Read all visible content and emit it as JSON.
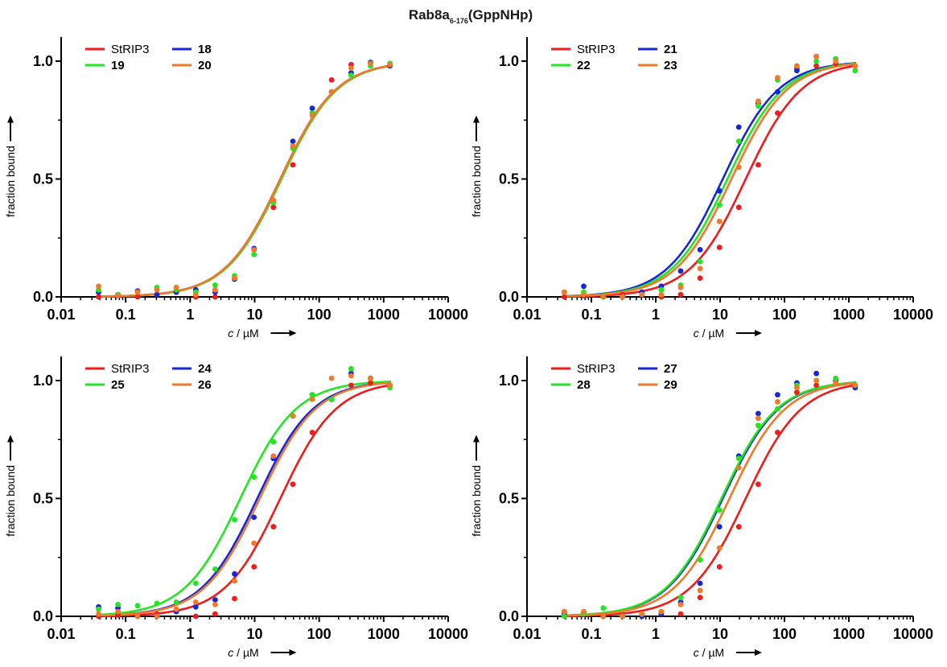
{
  "figure": {
    "title_main": "Rab8a",
    "title_sub": "6-176",
    "title_tail": "(GppNHp)"
  },
  "colors": {
    "StRIP3": "#ee1c1c",
    "blue": "#1528d8",
    "green": "#22e622",
    "orange": "#f07a2a"
  },
  "chart_data": [
    {
      "type": "scatter",
      "xscale": "log",
      "xlim": [
        0.01,
        10000
      ],
      "ylim": [
        0,
        1.1
      ],
      "xticks": [
        "0.01",
        "0.1",
        "1",
        "10",
        "100",
        "1000",
        "10000"
      ],
      "yticks": [
        "0.0",
        "0.5",
        "1.0"
      ],
      "xlabel_italic": "c",
      "xlabel": " / µM",
      "ylabel": "fraction bound",
      "legend_position": "top-left",
      "series": [
        {
          "name": "StRIP3",
          "color": "#ee1c1c",
          "fit_ec50": 25,
          "x": [
            0.038,
            0.076,
            0.153,
            0.305,
            0.61,
            1.22,
            2.44,
            4.88,
            9.77,
            19.5,
            39.1,
            78.1,
            156,
            313,
            625,
            1250
          ],
          "y": [
            0.0,
            0.005,
            0.0,
            0.01,
            0.02,
            0.0,
            0.0,
            0.08,
            0.2,
            0.38,
            0.56,
            0.78,
            0.92,
            0.985,
            0.99,
            0.985
          ]
        },
        {
          "name": "18",
          "color": "#1528d8",
          "fit_ec50": 25,
          "x": [
            0.038,
            0.076,
            0.153,
            0.305,
            0.61,
            1.22,
            2.44,
            4.88,
            9.77,
            19.5,
            39.1,
            78.1,
            156,
            313,
            625,
            1250
          ],
          "y": [
            0.02,
            0.01,
            0.025,
            0.01,
            0.02,
            0.03,
            0.02,
            0.075,
            0.205,
            0.41,
            0.66,
            0.8,
            0.87,
            0.95,
            0.995,
            0.98
          ]
        },
        {
          "name": "19",
          "color": "#22e622",
          "fit_ec50": 26,
          "x": [
            0.038,
            0.076,
            0.153,
            0.305,
            0.61,
            1.22,
            2.44,
            4.88,
            9.77,
            19.5,
            39.1,
            78.1,
            156,
            313,
            625,
            1250
          ],
          "y": [
            0.03,
            0.01,
            0.02,
            0.04,
            0.03,
            0.02,
            0.05,
            0.09,
            0.18,
            0.4,
            0.63,
            0.78,
            0.87,
            0.94,
            0.98,
            0.99
          ]
        },
        {
          "name": "20",
          "color": "#f07a2a",
          "fit_ec50": 25,
          "x": [
            0.038,
            0.076,
            0.153,
            0.305,
            0.61,
            1.22,
            2.44,
            4.88,
            9.77,
            19.5,
            39.1,
            78.1,
            156,
            313,
            625,
            1250
          ],
          "y": [
            0.045,
            0.005,
            0.02,
            0.03,
            0.04,
            0.01,
            0.03,
            0.08,
            0.2,
            0.41,
            0.64,
            0.77,
            0.87,
            0.97,
            0.99,
            0.985
          ]
        }
      ]
    },
    {
      "type": "scatter",
      "xscale": "log",
      "xlim": [
        0.01,
        10000
      ],
      "ylim": [
        0,
        1.1
      ],
      "xticks": [
        "0.01",
        "0.1",
        "1",
        "10",
        "100",
        "1000",
        "10000"
      ],
      "yticks": [
        "0.0",
        "0.5",
        "1.0"
      ],
      "xlabel_italic": "c",
      "xlabel": " / µM",
      "ylabel": "fraction bound",
      "legend_position": "top-left",
      "series": [
        {
          "name": "StRIP3",
          "color": "#ee1c1c",
          "fit_ec50": 25,
          "x": [
            0.038,
            0.076,
            0.153,
            0.305,
            0.61,
            1.22,
            2.44,
            4.88,
            9.77,
            19.5,
            39.1,
            78.1,
            156,
            313,
            625,
            1250
          ],
          "y": [
            0.0,
            0.005,
            0.0,
            0.01,
            0.02,
            0.0,
            0.01,
            0.08,
            0.21,
            0.38,
            0.56,
            0.78,
            0.97,
            0.98,
            0.99,
            0.98
          ]
        },
        {
          "name": "21",
          "color": "#1528d8",
          "fit_ec50": 11,
          "x": [
            0.038,
            0.076,
            0.153,
            0.305,
            0.61,
            1.22,
            2.44,
            4.88,
            9.77,
            19.5,
            39.1,
            78.1,
            156,
            313,
            625,
            1250
          ],
          "y": [
            0.02,
            0.045,
            0.0,
            0.0,
            0.02,
            0.045,
            0.11,
            0.2,
            0.45,
            0.72,
            0.82,
            0.87,
            0.96,
            1.02,
            1.01,
            0.98
          ]
        },
        {
          "name": "22",
          "color": "#22e622",
          "fit_ec50": 13,
          "x": [
            0.038,
            0.076,
            0.153,
            0.305,
            0.61,
            1.22,
            2.44,
            4.88,
            9.77,
            19.5,
            39.1,
            78.1,
            156,
            313,
            625,
            1250
          ],
          "y": [
            0.02,
            0.02,
            0.0,
            0.0,
            0.01,
            0.03,
            0.05,
            0.15,
            0.39,
            0.66,
            0.81,
            0.92,
            0.98,
            1.0,
            1.01,
            0.96
          ]
        },
        {
          "name": "23",
          "color": "#f07a2a",
          "fit_ec50": 15,
          "x": [
            0.038,
            0.076,
            0.153,
            0.305,
            0.61,
            1.22,
            2.44,
            4.88,
            9.77,
            19.5,
            39.1,
            78.1,
            156,
            313,
            625,
            1250
          ],
          "y": [
            0.02,
            0.01,
            0.0,
            0.0,
            0.01,
            0.01,
            0.04,
            0.12,
            0.32,
            0.55,
            0.83,
            0.93,
            0.98,
            1.02,
            1.0,
            0.98
          ]
        }
      ]
    },
    {
      "type": "scatter",
      "xscale": "log",
      "xlim": [
        0.01,
        10000
      ],
      "ylim": [
        0,
        1.1
      ],
      "xticks": [
        "0.01",
        "0.1",
        "1",
        "10",
        "100",
        "1000",
        "10000"
      ],
      "yticks": [
        "0.0",
        "0.5",
        "1.0"
      ],
      "xlabel_italic": "c",
      "xlabel": " / µM",
      "ylabel": "fraction bound",
      "legend_position": "top-left",
      "series": [
        {
          "name": "StRIP3",
          "color": "#ee1c1c",
          "fit_ec50": 25,
          "x": [
            0.038,
            0.076,
            0.153,
            0.305,
            0.61,
            1.22,
            2.44,
            4.88,
            9.77,
            19.5,
            39.1,
            78.1,
            156,
            313,
            625,
            1250
          ],
          "y": [
            0.0,
            0.005,
            0.0,
            0.01,
            0.02,
            0.0,
            0.01,
            0.075,
            0.21,
            0.38,
            0.56,
            0.78,
            0.92,
            0.98,
            0.99,
            0.98
          ]
        },
        {
          "name": "24",
          "color": "#1528d8",
          "fit_ec50": 11,
          "x": [
            0.038,
            0.076,
            0.153,
            0.305,
            0.61,
            1.22,
            2.44,
            4.88,
            9.77,
            19.5,
            39.1,
            78.1,
            156,
            313,
            625,
            1250
          ],
          "y": [
            0.04,
            0.035,
            0.0,
            0.0,
            0.02,
            0.04,
            0.07,
            0.18,
            0.42,
            0.67,
            0.85,
            0.94,
            0.92,
            1.03,
            1.01,
            0.98
          ]
        },
        {
          "name": "25",
          "color": "#22e622",
          "fit_ec50": 6,
          "x": [
            0.038,
            0.076,
            0.153,
            0.305,
            0.61,
            1.22,
            2.44,
            4.88,
            9.77,
            19.5,
            39.1,
            78.1,
            156,
            313,
            625,
            1250
          ],
          "y": [
            0.03,
            0.05,
            0.045,
            0.055,
            0.06,
            0.14,
            0.2,
            0.41,
            0.59,
            0.74,
            0.85,
            0.94,
            0.92,
            1.05,
            1.01,
            0.97
          ]
        },
        {
          "name": "26",
          "color": "#f07a2a",
          "fit_ec50": 12,
          "x": [
            0.038,
            0.076,
            0.153,
            0.305,
            0.61,
            1.22,
            2.44,
            4.88,
            9.77,
            19.5,
            39.1,
            78.1,
            156,
            313,
            625,
            1250
          ],
          "y": [
            0.01,
            0.02,
            0.0,
            0.0,
            0.03,
            0.06,
            0.05,
            0.15,
            0.31,
            0.68,
            0.85,
            0.92,
            1.01,
            1.02,
            1.01,
            0.98
          ]
        }
      ]
    },
    {
      "type": "scatter",
      "xscale": "log",
      "xlim": [
        0.01,
        10000
      ],
      "ylim": [
        0,
        1.1
      ],
      "xticks": [
        "0.01",
        "0.1",
        "1",
        "10",
        "100",
        "1000",
        "10000"
      ],
      "yticks": [
        "0.0",
        "0.5",
        "1.0"
      ],
      "xlabel_italic": "c",
      "xlabel": " / µM",
      "ylabel": "fraction bound",
      "legend_position": "top-left",
      "series": [
        {
          "name": "StRIP3",
          "color": "#ee1c1c",
          "fit_ec50": 25,
          "x": [
            0.038,
            0.076,
            0.153,
            0.305,
            0.61,
            1.22,
            2.44,
            4.88,
            9.77,
            19.5,
            39.1,
            78.1,
            156,
            313,
            625,
            1250
          ],
          "y": [
            0.02,
            0.01,
            0.0,
            0.0,
            0.01,
            0.01,
            0.01,
            0.08,
            0.21,
            0.38,
            0.56,
            0.78,
            0.95,
            0.98,
            0.99,
            0.98
          ]
        },
        {
          "name": "27",
          "color": "#1528d8",
          "fit_ec50": 11,
          "x": [
            0.038,
            0.076,
            0.153,
            0.305,
            0.61,
            1.22,
            2.44,
            4.88,
            9.77,
            19.5,
            39.1,
            78.1,
            156,
            313,
            625,
            1250
          ],
          "y": [
            0.01,
            0.015,
            0.0,
            0.0,
            0.0,
            0.01,
            0.06,
            0.14,
            0.38,
            0.68,
            0.86,
            0.94,
            0.99,
            1.03,
            1.0,
            0.97
          ]
        },
        {
          "name": "28",
          "color": "#22e622",
          "fit_ec50": 10.5,
          "x": [
            0.038,
            0.076,
            0.153,
            0.305,
            0.61,
            1.22,
            2.44,
            4.88,
            9.77,
            19.5,
            39.1,
            78.1,
            156,
            313,
            625,
            1250
          ],
          "y": [
            0.0,
            0.01,
            0.035,
            0.0,
            0.01,
            0.02,
            0.08,
            0.24,
            0.45,
            0.67,
            0.81,
            0.88,
            0.98,
            1.0,
            1.01,
            0.98
          ]
        },
        {
          "name": "29",
          "color": "#f07a2a",
          "fit_ec50": 14,
          "x": [
            0.038,
            0.076,
            0.153,
            0.305,
            0.61,
            1.22,
            2.44,
            4.88,
            9.77,
            19.5,
            39.1,
            78.1,
            156,
            313,
            625,
            1250
          ],
          "y": [
            0.02,
            0.02,
            0.0,
            0.0,
            0.01,
            0.02,
            0.05,
            0.11,
            0.29,
            0.63,
            0.84,
            0.91,
            0.97,
            1.0,
            0.99,
            0.98
          ]
        }
      ]
    }
  ]
}
